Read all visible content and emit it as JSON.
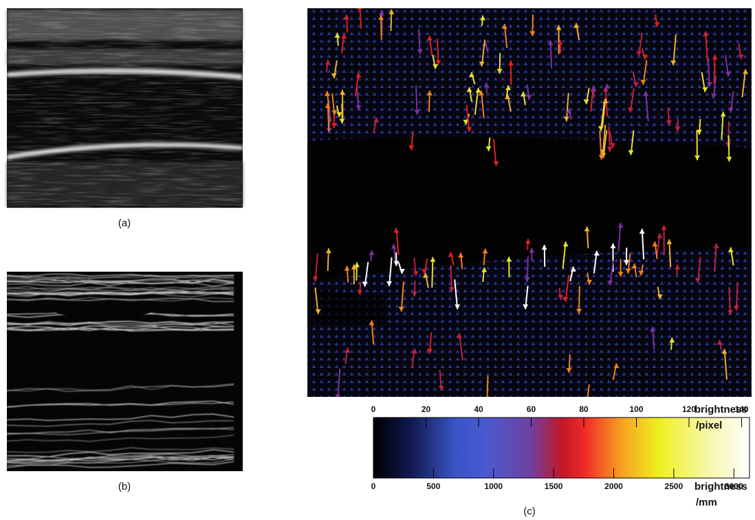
{
  "panels": [
    {
      "label": "(a)"
    },
    {
      "label": "(b)"
    },
    {
      "label": "(c)"
    }
  ],
  "colorbar": {
    "top_axis": {
      "lim": [
        0,
        143
      ],
      "ticks": [
        0,
        20,
        40,
        60,
        80,
        100,
        120,
        140
      ],
      "label_lines": [
        "brightness",
        "/pixel"
      ]
    },
    "bottom_axis": {
      "lim": [
        0,
        3130
      ],
      "ticks": [
        0,
        500,
        1000,
        1500,
        2000,
        2500,
        3000
      ],
      "label_lines": [
        "brightness",
        "/mm"
      ]
    }
  }
}
